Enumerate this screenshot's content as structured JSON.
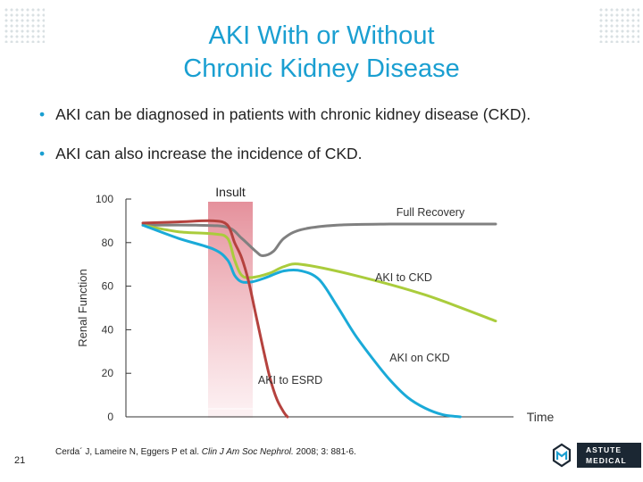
{
  "title": {
    "line1": "AKI With or Without",
    "line2": "Chronic Kidney Disease"
  },
  "bullets": [
    "AKI can be diagnosed in patients with chronic kidney disease (CKD).",
    "AKI can also increase the incidence of CKD."
  ],
  "chart_data": {
    "type": "line",
    "ylabel": "Renal Function",
    "xlabel": "Time",
    "ylim": [
      0,
      100
    ],
    "yticks": [
      0,
      20,
      40,
      60,
      80,
      100
    ],
    "grid": false,
    "annotations": {
      "insult": "Insult"
    },
    "series": [
      {
        "name": "Full Recovery",
        "color": "#808080",
        "values": [
          [
            0,
            88
          ],
          [
            0.15,
            88
          ],
          [
            0.24,
            87
          ],
          [
            0.28,
            82
          ],
          [
            0.32,
            76
          ],
          [
            0.34,
            74
          ],
          [
            0.37,
            76
          ],
          [
            0.4,
            82
          ],
          [
            0.45,
            86
          ],
          [
            0.55,
            88
          ],
          [
            0.7,
            88.5
          ],
          [
            0.85,
            88.5
          ],
          [
            1.0,
            88.5
          ]
        ]
      },
      {
        "name": "AKI to CKD",
        "color": "#aacc3c",
        "values": [
          [
            0,
            88
          ],
          [
            0.1,
            85
          ],
          [
            0.2,
            84
          ],
          [
            0.24,
            82
          ],
          [
            0.26,
            72
          ],
          [
            0.28,
            65
          ],
          [
            0.31,
            64
          ],
          [
            0.36,
            66
          ],
          [
            0.4,
            69
          ],
          [
            0.45,
            70
          ],
          [
            0.6,
            65
          ],
          [
            0.8,
            56
          ],
          [
            1.0,
            44
          ]
        ]
      },
      {
        "name": "AKI on CKD",
        "color": "#1aaad8",
        "values": [
          [
            0,
            88
          ],
          [
            0.1,
            82
          ],
          [
            0.2,
            77
          ],
          [
            0.24,
            72
          ],
          [
            0.26,
            65
          ],
          [
            0.28,
            62
          ],
          [
            0.31,
            62
          ],
          [
            0.35,
            64
          ],
          [
            0.4,
            67
          ],
          [
            0.45,
            67
          ],
          [
            0.5,
            63
          ],
          [
            0.55,
            51
          ],
          [
            0.6,
            38
          ],
          [
            0.65,
            27
          ],
          [
            0.7,
            17
          ],
          [
            0.75,
            9
          ],
          [
            0.8,
            4
          ],
          [
            0.85,
            1
          ],
          [
            0.9,
            0
          ]
        ]
      },
      {
        "name": "AKI to ESRD",
        "color": "#b5423e",
        "values": [
          [
            0,
            89
          ],
          [
            0.1,
            89.5
          ],
          [
            0.2,
            90
          ],
          [
            0.24,
            88
          ],
          [
            0.26,
            80
          ],
          [
            0.28,
            73
          ],
          [
            0.3,
            62
          ],
          [
            0.32,
            47
          ],
          [
            0.34,
            32
          ],
          [
            0.36,
            18
          ],
          [
            0.38,
            8
          ],
          [
            0.4,
            2
          ],
          [
            0.41,
            0
          ]
        ]
      }
    ]
  },
  "citation": {
    "authors": "Cerda´ J, Lameire N, Eggers P et al. ",
    "journal": "Clin J Am Soc Nephrol.",
    "details": " 2008; 3: 881-6."
  },
  "slide_number": "21",
  "logo": {
    "line1": "ASTUTE",
    "line2": "MEDICAL",
    "symbol": "astute-medical-logo-icon"
  }
}
